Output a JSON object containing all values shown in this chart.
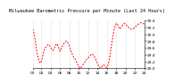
{
  "title": "Milwaukee Barometric Pressure per Minute (Last 24 Hours)",
  "line_color": "#ff0000",
  "bg_color": "#ffffff",
  "grid_color": "#c8c8c8",
  "ylim": [
    29.0,
    30.4
  ],
  "yticks": [
    29.0,
    29.2,
    29.4,
    29.6,
    29.8,
    30.0,
    30.2,
    30.4
  ],
  "pressure_values": [
    30.15,
    30.08,
    29.98,
    29.85,
    29.68,
    29.52,
    29.4,
    29.3,
    29.22,
    29.18,
    29.15,
    29.2,
    29.28,
    29.38,
    29.48,
    29.55,
    29.6,
    29.62,
    29.65,
    29.68,
    29.7,
    29.68,
    29.65,
    29.62,
    29.58,
    29.55,
    29.52,
    29.55,
    29.6,
    29.65,
    29.7,
    29.72,
    29.68,
    29.62,
    29.55,
    29.5,
    29.55,
    29.6,
    29.65,
    29.68,
    29.72,
    29.75,
    29.78,
    29.8,
    29.78,
    29.75,
    29.7,
    29.65,
    29.58,
    29.5,
    29.45,
    29.4,
    29.35,
    29.3,
    29.28,
    29.25,
    29.2,
    29.15,
    29.1,
    29.05,
    29.02,
    29.0,
    29.02,
    29.05,
    29.08,
    29.12,
    29.15,
    29.18,
    29.22,
    29.25,
    29.28,
    29.3,
    29.32,
    29.35,
    29.38,
    29.4,
    29.42,
    29.4,
    29.38,
    29.35,
    29.3,
    29.25,
    29.2,
    29.15,
    29.1,
    29.05,
    29.02,
    29.0,
    29.02,
    29.05,
    29.08,
    29.1,
    29.08,
    29.05,
    29.03,
    29.02,
    29.05,
    29.12,
    29.22,
    29.35,
    29.5,
    29.65,
    29.8,
    29.95,
    30.08,
    30.18,
    30.25,
    30.3,
    30.32,
    30.28,
    30.22,
    30.18,
    30.15,
    30.18,
    30.22,
    30.25,
    30.28,
    30.3,
    30.32,
    30.3,
    30.28,
    30.25,
    30.22,
    30.2,
    30.18,
    30.16,
    30.15,
    30.14,
    30.15,
    30.16,
    30.18,
    30.2,
    30.22,
    30.24,
    30.26,
    30.28,
    30.3,
    30.32,
    30.33,
    30.34,
    30.33,
    30.32,
    30.31,
    30.3
  ],
  "title_fontsize": 3.8,
  "tick_fontsize": 3.2,
  "linewidth": 0.7,
  "num_vgridlines": 13
}
